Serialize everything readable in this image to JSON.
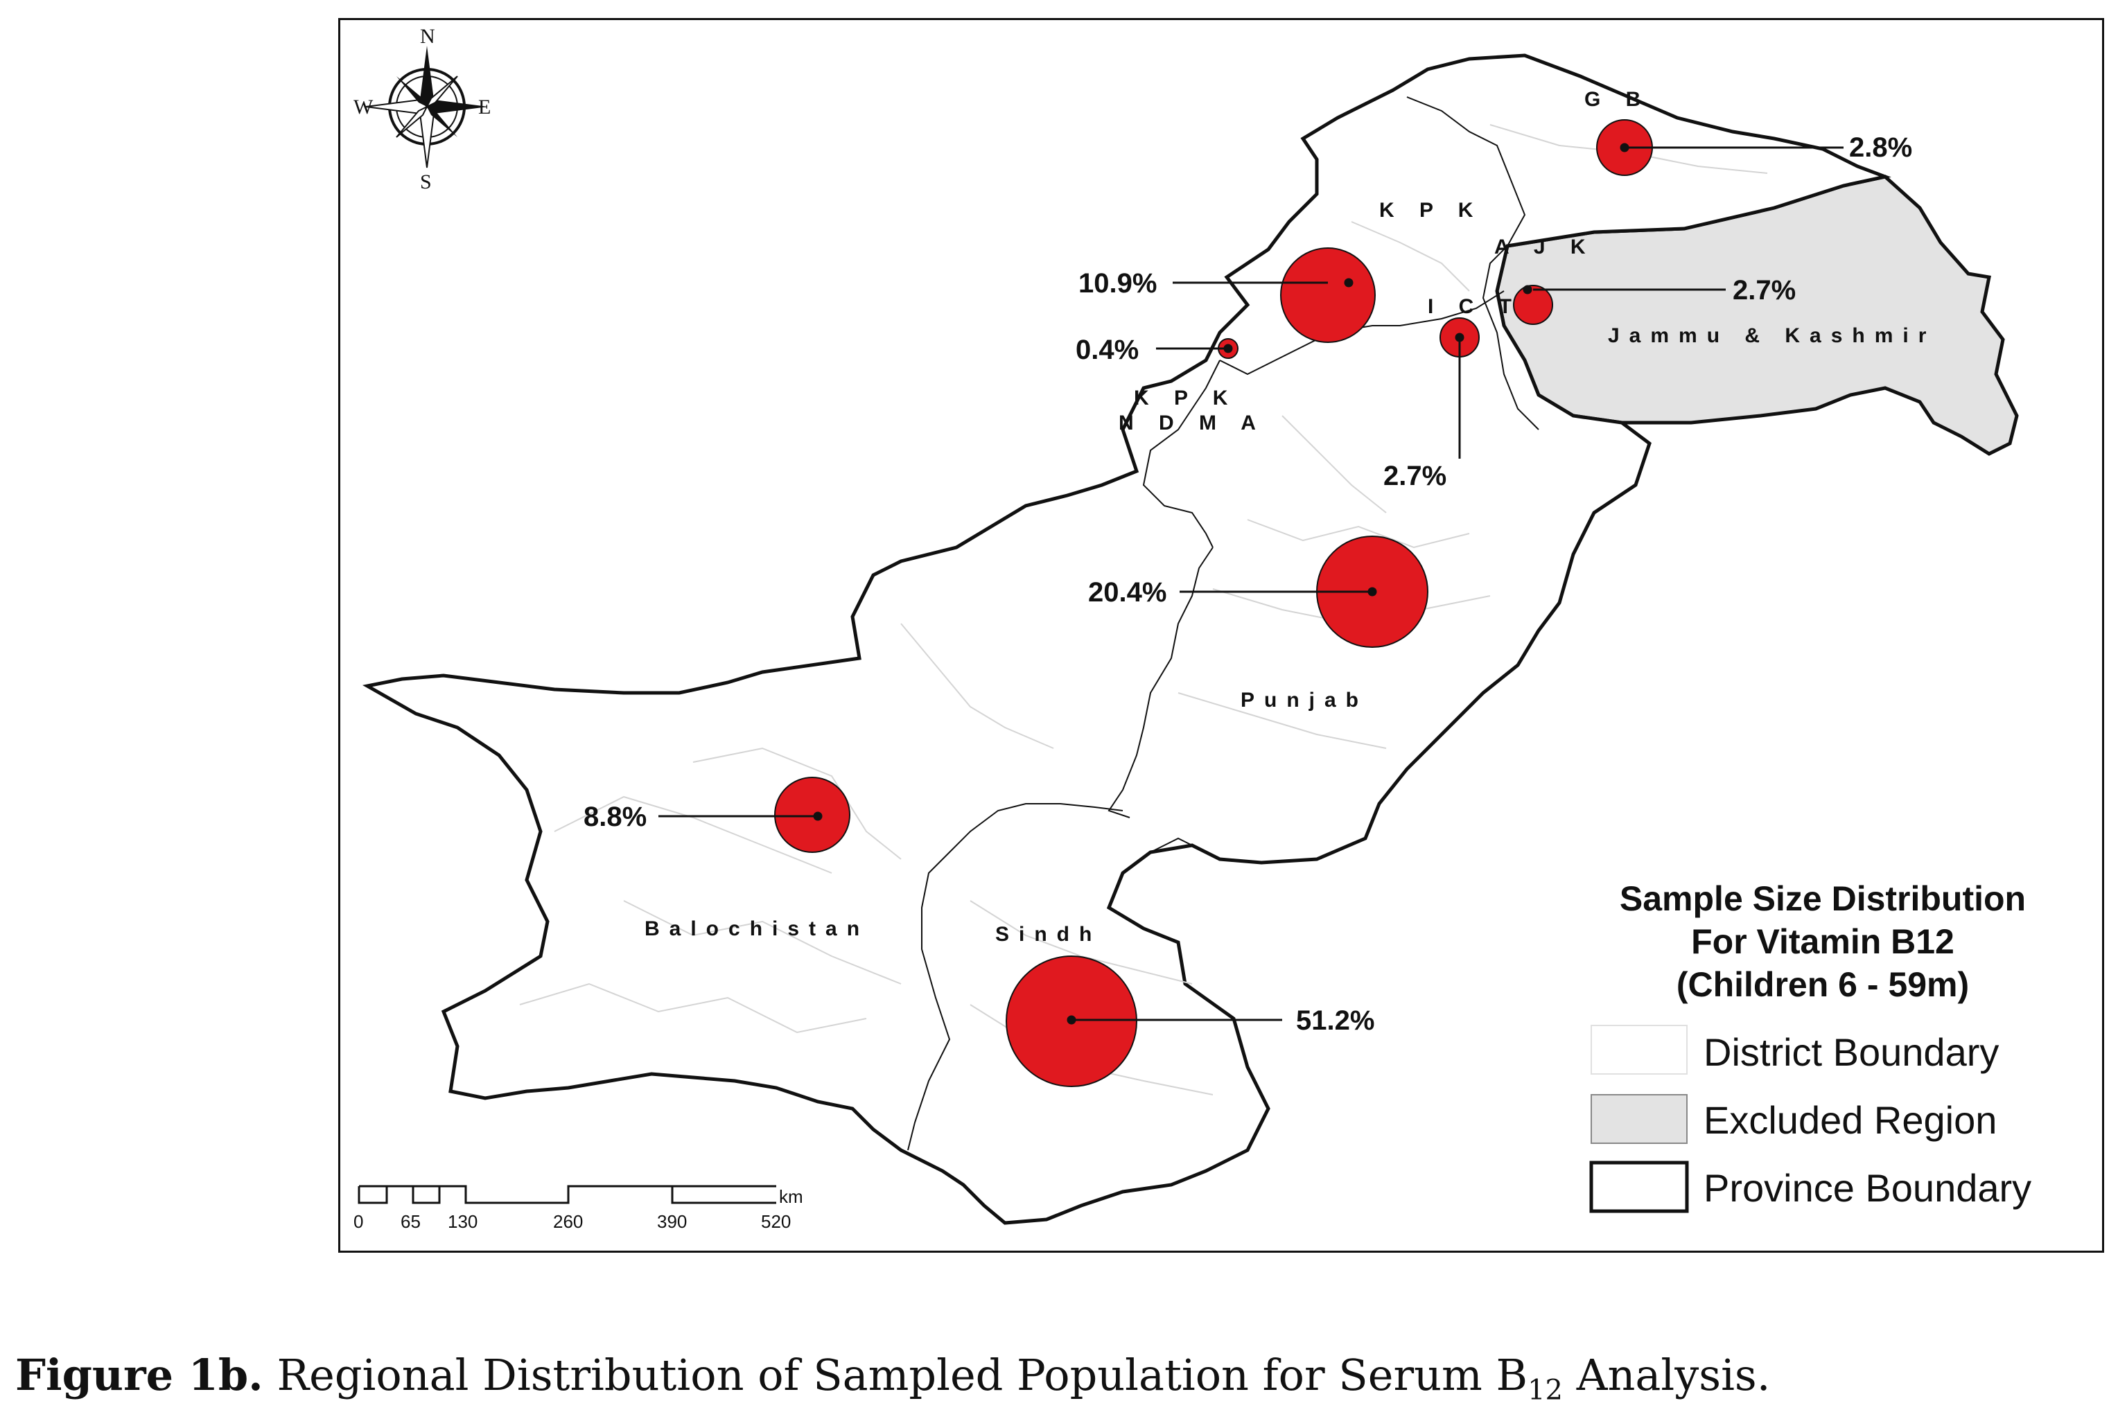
{
  "map": {
    "regions": {
      "gb": "G B",
      "kpk": "K P K",
      "ajk": "A J K",
      "ict": "I C T",
      "jammu_kashmir": "Jammu & Kashmir",
      "kpk_nma_line1": "K P K",
      "kpk_nma_line2": "N D M A",
      "punjab": "Punjab",
      "balochistan": "Balochistan",
      "sindh": "Sindh"
    },
    "samples": [
      {
        "region": "GB",
        "value": 2.8,
        "label": "2.8%"
      },
      {
        "region": "KPK",
        "value": 10.9,
        "label": "10.9%"
      },
      {
        "region": "KPK NMA",
        "value": 0.4,
        "label": "0.4%"
      },
      {
        "region": "ICT",
        "value": 2.7,
        "label": "2.7%"
      },
      {
        "region": "AJK",
        "value": 2.7,
        "label": "2.7%"
      },
      {
        "region": "Punjab",
        "value": 20.4,
        "label": "20.4%"
      },
      {
        "region": "Balochistan",
        "value": 8.8,
        "label": "8.8%"
      },
      {
        "region": "Sindh",
        "value": 51.2,
        "label": "51.2%"
      }
    ],
    "compass": {
      "n": "N",
      "s": "S",
      "e": "E",
      "w": "W"
    },
    "scale": {
      "ticks": [
        "0",
        "65",
        "130",
        "260",
        "390",
        "520"
      ],
      "unit": "km"
    },
    "colors": {
      "circle": "#e0191f",
      "excluded": "#e3e3e3",
      "boundary": "#111111",
      "district": "#d8d8d8"
    }
  },
  "legend": {
    "title_line1": "Sample Size Distribution",
    "title_line2": "For Vitamin B12",
    "title_line3": "(Children 6 - 59m)",
    "district": "District Boundary",
    "excluded": "Excluded Region",
    "province": "Province Boundary"
  },
  "caption": {
    "label": "Figure 1b.",
    "text": "Regional Distribution of Sampled Population for Serum B",
    "subscript": "12",
    "tail": " Analysis."
  }
}
